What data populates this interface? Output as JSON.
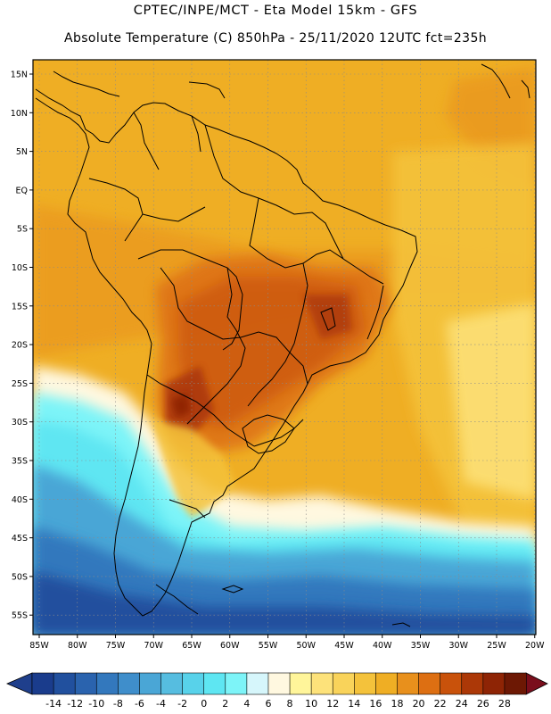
{
  "header": {
    "line1": "CPTEC/INPE/MCT -  Eta Model 15km - GFS",
    "line2": "Absolute Temperature (C) 850hPa - 25/11/2020 12UTC fct=235h"
  },
  "axes": {
    "lat_labels": [
      "15N",
      "10N",
      "5N",
      "EQ",
      "5S",
      "10S",
      "15S",
      "20S",
      "25S",
      "30S",
      "35S",
      "40S",
      "45S",
      "50S",
      "55S"
    ],
    "lon_labels": [
      "85W",
      "80W",
      "75W",
      "70W",
      "65W",
      "60W",
      "55W",
      "50W",
      "45W",
      "40W",
      "35W",
      "30W",
      "25W",
      "20W"
    ]
  },
  "colorbar": {
    "labels": [
      "-14",
      "-12",
      "-10",
      "-8",
      "-6",
      "-4",
      "-2",
      "0",
      "2",
      "4",
      "6",
      "8",
      "10",
      "12",
      "14",
      "16",
      "18",
      "20",
      "22",
      "24",
      "26",
      "28"
    ],
    "colors": [
      "#1a3c8c",
      "#21509e",
      "#2a63ae",
      "#3378bd",
      "#3f8ecb",
      "#4aa6d6",
      "#56bde0",
      "#58d2ea",
      "#5ee6f2",
      "#7df4f8",
      "#d6f6fb",
      "#fff8e0",
      "#fff59a",
      "#fde27a",
      "#f9d35a",
      "#f4c23b",
      "#efae24",
      "#e8901c",
      "#dd6f12",
      "#c9520b",
      "#ac3807",
      "#8e2405",
      "#6d1804"
    ],
    "low_arrow_color": "#1f3f8c",
    "high_arrow_color": "#7a0e1c"
  },
  "colors": {
    "background": "#ffffff",
    "continent_outline": "#000000",
    "grid": "#8a8a8a"
  }
}
